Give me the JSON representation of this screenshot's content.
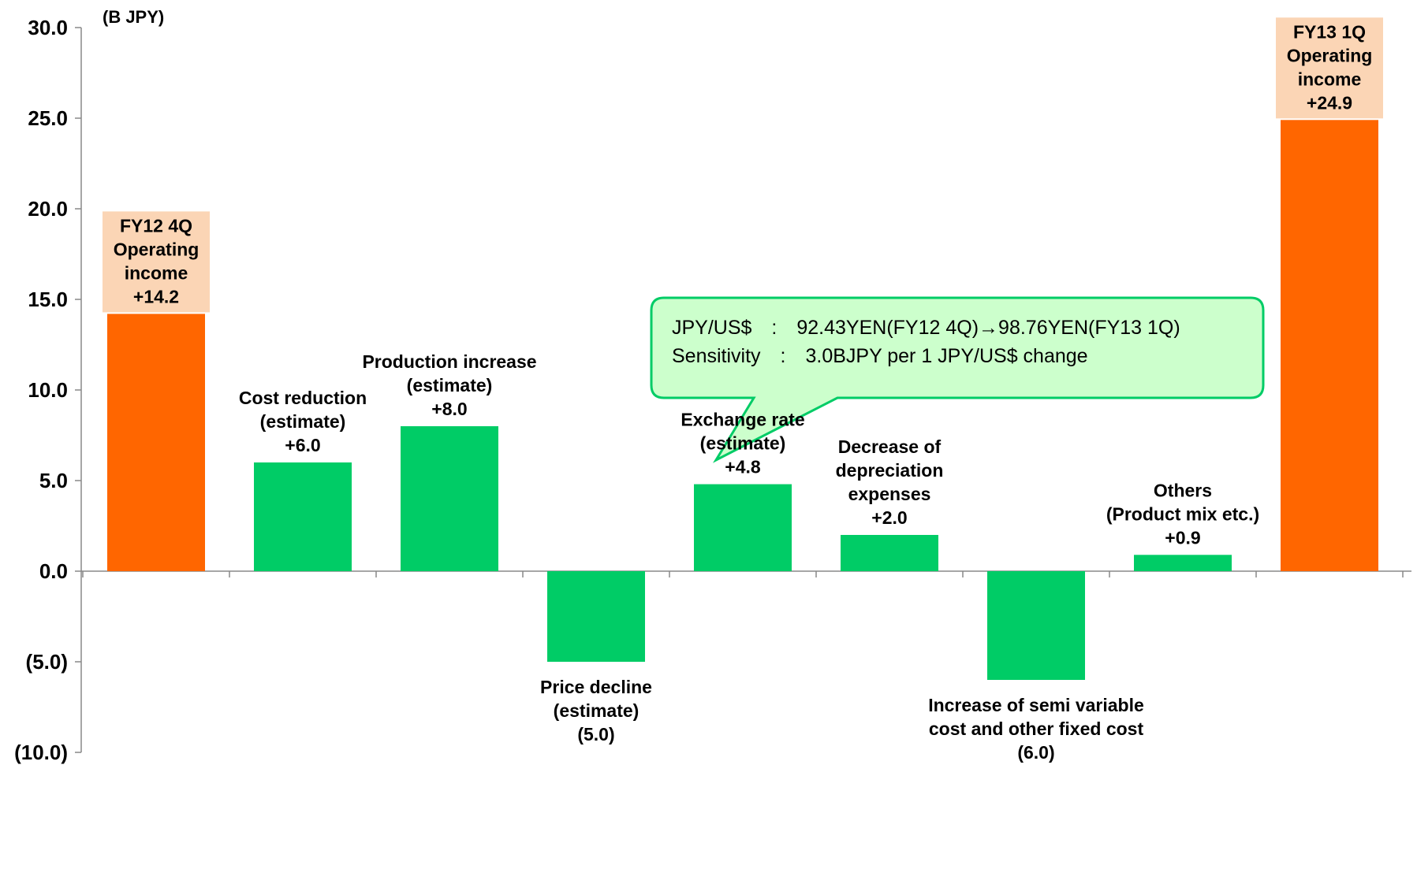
{
  "chart_data": {
    "type": "bar",
    "subtype": "waterfall",
    "unit_label": "(B JPY)",
    "title": "",
    "xlabel": "",
    "ylabel": "",
    "ylim": [
      -10,
      30
    ],
    "y_ticks": [
      30,
      25,
      20,
      15,
      10,
      5,
      0,
      -5,
      -10
    ],
    "y_tick_labels": [
      "30.0",
      "25.0",
      "20.0",
      "15.0",
      "10.0",
      "5.0",
      "0.0",
      "(5.0)",
      "(10.0)"
    ],
    "grid": false,
    "legend": "none",
    "colors": {
      "total": "#FF6600",
      "factor": "#00CC66",
      "total_label_bg": "#FBD5B5",
      "callout_fill": "#CCFFCC",
      "callout_border": "#00CC66"
    },
    "bars": [
      {
        "name": "fy12-4q-operating-income",
        "kind": "total",
        "value": 14.2,
        "label_lines": [
          "FY12 4Q",
          "Operating",
          "income",
          "+14.2"
        ]
      },
      {
        "name": "cost-reduction",
        "kind": "factor",
        "value": 6.0,
        "label_lines": [
          "Cost reduction",
          "(estimate)",
          "+6.0"
        ]
      },
      {
        "name": "production-increase",
        "kind": "factor",
        "value": 8.0,
        "label_lines": [
          "Production increase",
          "(estimate)",
          "+8.0"
        ]
      },
      {
        "name": "price-decline",
        "kind": "factor",
        "value": -5.0,
        "label_lines": [
          "Price decline",
          "(estimate)",
          "(5.0)"
        ]
      },
      {
        "name": "exchange-rate",
        "kind": "factor",
        "value": 4.8,
        "label_lines": [
          "Exchange rate",
          "(estimate)",
          "+4.8"
        ]
      },
      {
        "name": "decrease-of-depreciation",
        "kind": "factor",
        "value": 2.0,
        "label_lines": [
          "Decrease of",
          "depreciation",
          "expenses",
          "+2.0"
        ]
      },
      {
        "name": "increase-of-semi-variable-cost",
        "kind": "factor",
        "value": -6.0,
        "label_lines": [
          "Increase of semi variable",
          "cost and other fixed cost",
          "(6.0)"
        ]
      },
      {
        "name": "others",
        "kind": "factor",
        "value": 0.9,
        "label_lines": [
          "Others",
          "(Product mix etc.)",
          "+0.9"
        ]
      },
      {
        "name": "fy13-1q-operating-income",
        "kind": "total",
        "value": 24.9,
        "label_lines": [
          "FY13 1Q",
          "Operating",
          "income",
          "+24.9"
        ]
      }
    ],
    "callout": {
      "line1": "JPY/US$　:　92.43YEN(FY12 4Q)→98.76YEN(FY13 1Q)",
      "line2": "Sensitivity　:　3.0BJPY per 1 JPY/US$ change"
    }
  }
}
